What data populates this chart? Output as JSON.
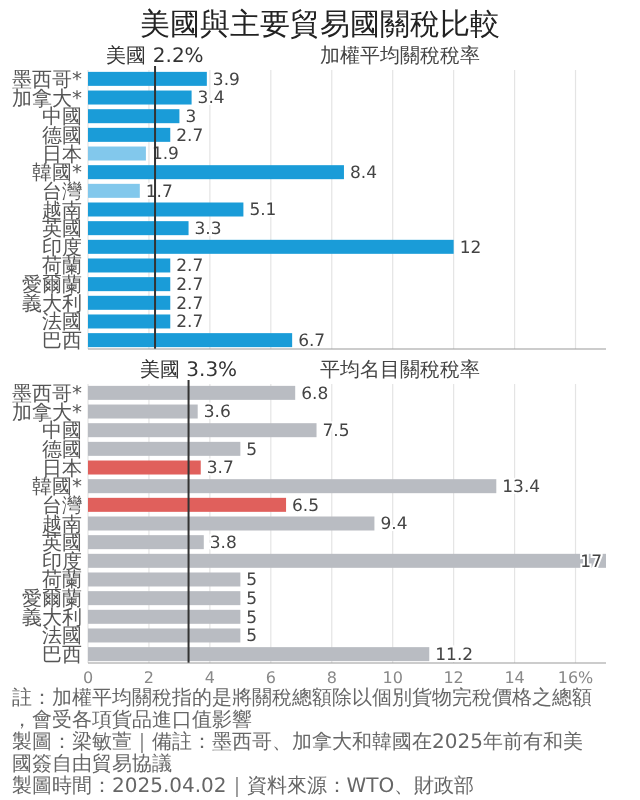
{
  "chart_data": [
    {
      "type": "bar",
      "orientation": "horizontal",
      "title": "美國與主要貿易國關稅比較",
      "subtitle": "加權平均關稅稅率",
      "categories": [
        "墨西哥*",
        "加拿大*",
        "中國",
        "德國",
        "日本",
        "韓國*",
        "台灣",
        "越南",
        "英國",
        "印度",
        "荷蘭",
        "愛爾蘭",
        "義大利",
        "法國",
        "巴西"
      ],
      "values": [
        3.9,
        3.4,
        3,
        2.7,
        1.9,
        8.4,
        1.7,
        5.1,
        3.3,
        12,
        2.7,
        2.7,
        2.7,
        2.7,
        6.7
      ],
      "colors": [
        "#1a9cd8",
        "#1a9cd8",
        "#1a9cd8",
        "#1a9cd8",
        "#82c8ec",
        "#1a9cd8",
        "#82c8ec",
        "#1a9cd8",
        "#1a9cd8",
        "#1a9cd8",
        "#1a9cd8",
        "#1a9cd8",
        "#1a9cd8",
        "#1a9cd8",
        "#1a9cd8"
      ],
      "data_labels": true,
      "xlim": [
        0,
        17
      ],
      "xticks": [
        0,
        2,
        4,
        6,
        8,
        10,
        12,
        14,
        16
      ],
      "grid": "x",
      "tick_labels": "y",
      "ref_lines": [
        {
          "axis": "x",
          "value": 2.2,
          "label": "美國 2.2%",
          "color": "#333333"
        }
      ]
    },
    {
      "type": "bar",
      "orientation": "horizontal",
      "title": "平均名目關稅稅率",
      "categories": [
        "墨西哥*",
        "加拿大*",
        "中國",
        "德國",
        "日本",
        "韓國*",
        "台灣",
        "越南",
        "英國",
        "印度",
        "荷蘭",
        "愛爾蘭",
        "義大利",
        "法國",
        "巴西"
      ],
      "values": [
        6.8,
        3.6,
        7.5,
        5,
        3.7,
        13.4,
        6.5,
        9.4,
        3.8,
        17,
        5,
        5,
        5,
        5,
        11.2
      ],
      "colors": [
        "#b9bcc2",
        "#b9bcc2",
        "#b9bcc2",
        "#b9bcc2",
        "#e0605c",
        "#b9bcc2",
        "#e0605c",
        "#b9bcc2",
        "#b9bcc2",
        "#b9bcc2",
        "#b9bcc2",
        "#b9bcc2",
        "#b9bcc2",
        "#b9bcc2",
        "#b9bcc2"
      ],
      "data_labels": true,
      "xlim": [
        0,
        17
      ],
      "xticks": [
        0,
        2,
        4,
        6,
        8,
        10,
        12,
        14,
        {
          "value": 16,
          "label": "16%"
        }
      ],
      "grid": "x",
      "ref_lines": [
        {
          "axis": "x",
          "value": 3.3,
          "label": "美國 3.3%",
          "color": "#333333"
        }
      ],
      "annotations": [
        "註：加權平均關稅指的是將關稅總額除以個別貨物完稅價格之總額，會受各項貨品進口值影響",
        "製圖：梁敏萱｜備註：墨西哥、加拿大和韓國在2025年前有和美國簽自由貿易協議",
        "製圖時間：2025.04.02｜資料來源：WTO、財政部"
      ]
    }
  ]
}
